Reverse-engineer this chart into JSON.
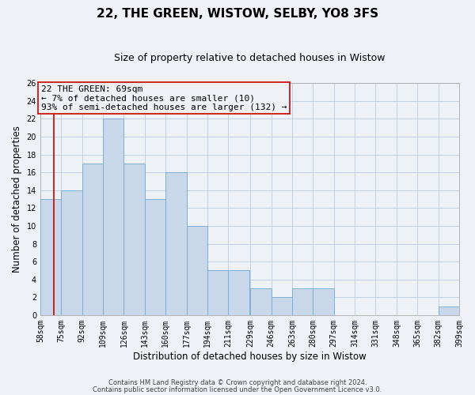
{
  "title": "22, THE GREEN, WISTOW, SELBY, YO8 3FS",
  "subtitle": "Size of property relative to detached houses in Wistow",
  "xlabel": "Distribution of detached houses by size in Wistow",
  "ylabel": "Number of detached properties",
  "bar_color": "#c8d8ea",
  "bar_edge_color": "#7bafd4",
  "background_color": "#eef2f7",
  "annotation_line_color": "#cc0000",
  "bin_edges": [
    58,
    75,
    92,
    109,
    126,
    143,
    160,
    177,
    194,
    211,
    229,
    246,
    263,
    280,
    297,
    314,
    331,
    348,
    365,
    382,
    399
  ],
  "bin_labels": [
    "58sqm",
    "75sqm",
    "92sqm",
    "109sqm",
    "126sqm",
    "143sqm",
    "160sqm",
    "177sqm",
    "194sqm",
    "211sqm",
    "229sqm",
    "246sqm",
    "263sqm",
    "280sqm",
    "297sqm",
    "314sqm",
    "331sqm",
    "348sqm",
    "365sqm",
    "382sqm",
    "399sqm"
  ],
  "counts": [
    13,
    14,
    17,
    22,
    17,
    13,
    16,
    10,
    5,
    5,
    3,
    2,
    3,
    3,
    0,
    0,
    0,
    0,
    0,
    1
  ],
  "ylim": [
    0,
    26
  ],
  "yticks": [
    0,
    2,
    4,
    6,
    8,
    10,
    12,
    14,
    16,
    18,
    20,
    22,
    24,
    26
  ],
  "property_size": 69,
  "annotation_box_text": "22 THE GREEN: 69sqm\n← 7% of detached houses are smaller (10)\n93% of semi-detached houses are larger (132) →",
  "footer_line1": "Contains HM Land Registry data © Crown copyright and database right 2024.",
  "footer_line2": "Contains public sector information licensed under the Open Government Licence v3.0.",
  "grid_color": "#b8cce0",
  "title_fontsize": 11,
  "subtitle_fontsize": 9,
  "axis_label_fontsize": 8.5,
  "tick_fontsize": 7,
  "annotation_fontsize": 8,
  "footer_fontsize": 6
}
